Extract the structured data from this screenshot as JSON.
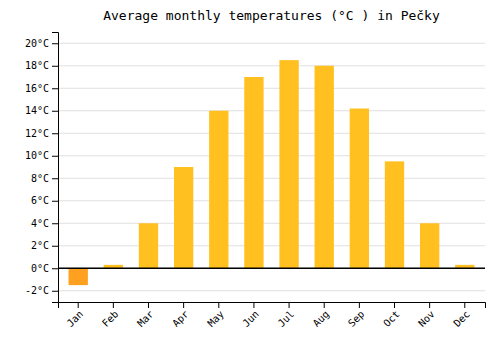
{
  "chart_data": {
    "type": "bar",
    "title": "Average monthly temperatures (°C ) in Pečky",
    "categories": [
      "Jan",
      "Feb",
      "Mar",
      "Apr",
      "May",
      "Jun",
      "Jul",
      "Aug",
      "Sep",
      "Oct",
      "Nov",
      "Dec"
    ],
    "values": [
      -1.5,
      0.3,
      4.0,
      9.0,
      14.0,
      17.0,
      18.5,
      18.0,
      14.2,
      9.5,
      4.0,
      0.3
    ],
    "colors": [
      "#FFA020",
      "#FFC020",
      "#FFC020",
      "#FFC020",
      "#FFC020",
      "#FFC020",
      "#FFC020",
      "#FFC020",
      "#FFC020",
      "#FFC020",
      "#FFC020",
      "#FFC020"
    ],
    "ylim": [
      -3,
      21
    ],
    "yticks": [
      {
        "value": -2,
        "label": "-2°C"
      },
      {
        "value": 0,
        "label": "0°C"
      },
      {
        "value": 2,
        "label": "2°C"
      },
      {
        "value": 4,
        "label": "4°C"
      },
      {
        "value": 6,
        "label": "6°C"
      },
      {
        "value": 8,
        "label": "8°C"
      },
      {
        "value": 10,
        "label": "10°C"
      },
      {
        "value": 12,
        "label": "12°C"
      },
      {
        "value": 14,
        "label": "14°C"
      },
      {
        "value": 16,
        "label": "16°C"
      },
      {
        "value": 18,
        "label": "18°C"
      },
      {
        "value": 20,
        "label": "20°C"
      }
    ],
    "grid": true
  }
}
